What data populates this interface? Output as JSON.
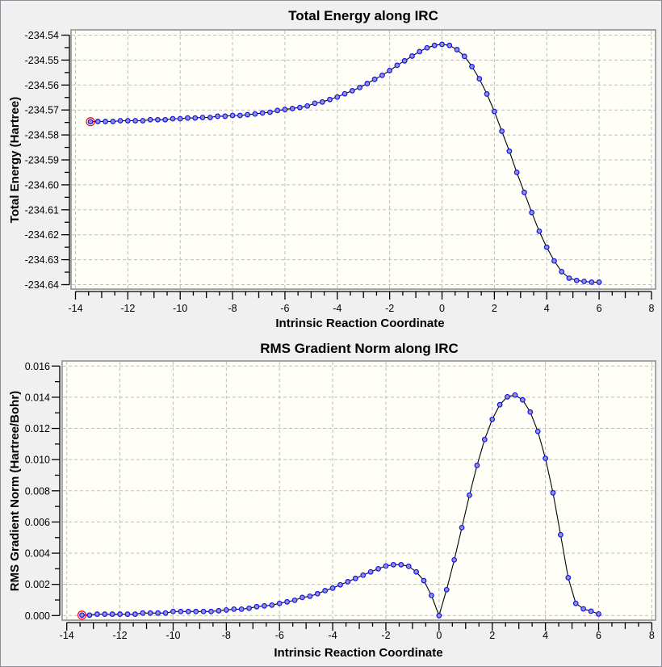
{
  "chart_data": [
    {
      "type": "line",
      "title": "Total Energy along IRC",
      "xlabel": "Intrinsic Reaction Coordinate",
      "ylabel": "Total Energy (Hartree)",
      "xlim": [
        -14,
        8
      ],
      "ylim": [
        -234.64,
        -234.54
      ],
      "grid": true,
      "xticks": [
        "-14",
        "-12",
        "-10",
        "-8",
        "-6",
        "-4",
        "-2",
        "0",
        "2",
        "4",
        "6",
        "8"
      ],
      "yticks": [
        "-234.54",
        "-234.55",
        "-234.56",
        "-234.57",
        "-234.58",
        "-234.59",
        "-234.60",
        "-234.61",
        "-234.62",
        "-234.63",
        "-234.64"
      ],
      "selected_point_index": 0,
      "x_start": -13.4286,
      "x_step": 0.2857,
      "y": [
        -234.5747,
        -234.5746,
        -234.5746,
        -234.5746,
        -234.5743,
        -234.5743,
        -234.5743,
        -234.5743,
        -234.5739,
        -234.5739,
        -234.5739,
        -234.5735,
        -234.5735,
        -234.5732,
        -234.5732,
        -234.573,
        -234.573,
        -234.5725,
        -234.5725,
        -234.5722,
        -234.5722,
        -234.5719,
        -234.5716,
        -234.5712,
        -234.5709,
        -234.5702,
        -234.5698,
        -234.5694,
        -234.569,
        -234.5684,
        -234.5673,
        -234.5668,
        -234.5658,
        -234.5648,
        -234.5635,
        -234.5623,
        -234.561,
        -234.5594,
        -234.5577,
        -234.5561,
        -234.5542,
        -234.5521,
        -234.5503,
        -234.5484,
        -234.5466,
        -234.5451,
        -234.5441,
        -234.5437,
        -234.5441,
        -234.5458,
        -234.5485,
        -234.5526,
        -234.5575,
        -234.5636,
        -234.5706,
        -234.5785,
        -234.5865,
        -234.595,
        -234.603,
        -234.6111,
        -234.6186,
        -234.625,
        -234.6305,
        -234.6348,
        -234.6374,
        -234.6383,
        -234.6387,
        -234.639,
        -234.639
      ]
    },
    {
      "type": "line",
      "title": "RMS Gradient Norm along IRC",
      "xlabel": "Intrinsic Reaction Coordinate",
      "ylabel": "RMS Gradient Norm (Hartree/Bohr)",
      "xlim": [
        -14,
        8
      ],
      "ylim": [
        0,
        0.016
      ],
      "grid": true,
      "xticks": [
        "-14",
        "-12",
        "-10",
        "-8",
        "-6",
        "-4",
        "-2",
        "0",
        "2",
        "4",
        "6",
        "8"
      ],
      "yticks": [
        "0.016",
        "0.014",
        "0.012",
        "0.010",
        "0.008",
        "0.006",
        "0.004",
        "0.002",
        "0.000"
      ],
      "selected_point_index": 0,
      "x_start": -13.4286,
      "x_step": 0.2857,
      "y": [
        3e-05,
        3e-05,
        9e-05,
        9e-05,
        9e-05,
        9e-05,
        9e-05,
        9e-05,
        0.00016,
        0.00016,
        0.00016,
        0.00016,
        0.00026,
        0.00026,
        0.00026,
        0.00026,
        0.00026,
        0.00026,
        0.00031,
        0.00036,
        0.00041,
        0.00041,
        0.00047,
        0.00057,
        0.00062,
        0.00067,
        0.00078,
        0.00088,
        0.00098,
        0.00116,
        0.00124,
        0.0014,
        0.0016,
        0.00176,
        0.00197,
        0.00217,
        0.00238,
        0.00259,
        0.0028,
        0.003,
        0.00318,
        0.00326,
        0.00326,
        0.00316,
        0.0028,
        0.00224,
        0.00129,
        0.0,
        0.00166,
        0.00357,
        0.00564,
        0.00772,
        0.00963,
        0.01129,
        0.01258,
        0.01352,
        0.01403,
        0.01414,
        0.01383,
        0.01305,
        0.01181,
        0.01008,
        0.00787,
        0.00518,
        0.00243,
        0.00078,
        0.00043,
        0.00028,
        0.0001
      ]
    }
  ],
  "colors": {
    "point_stroke": "#1010ff",
    "point_fill": "#9494c4",
    "selected": "#ff0000",
    "plot_bg": "#fffff8"
  }
}
